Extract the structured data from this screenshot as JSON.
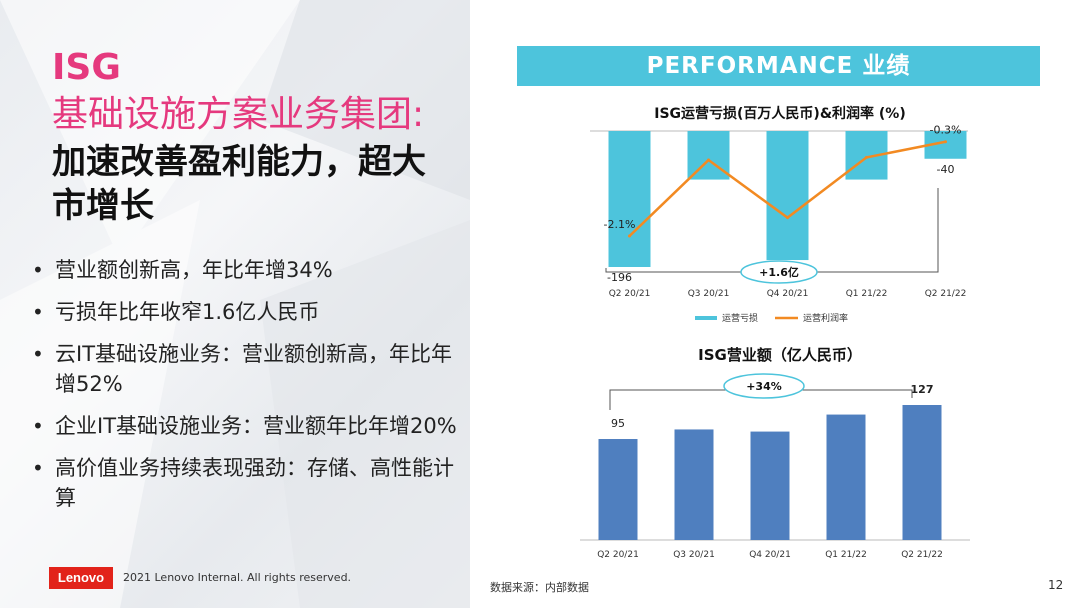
{
  "heading": {
    "line1": "ISG",
    "line2": "基础设施方案业务集团:",
    "line3": "加速改善盈利能力，超大市增长"
  },
  "bullets": [
    "营业额创新高，年比年增34%",
    "亏损年比年收窄1.6亿人民币",
    "云IT基础设施业务：营业额创新高，年比年增52%",
    "企业IT基础设施业务：营业额年比年增20%",
    "高价值业务持续表现强劲：存储、高性能计算"
  ],
  "footer": {
    "logo_text": "Lenovo",
    "copyright": "2021 Lenovo Internal. All rights reserved.",
    "source": "数据来源：内部数据",
    "page_number": "12"
  },
  "banner": {
    "text": "PERFORMANCE 业绩"
  },
  "colors": {
    "accent_pink": "#e5397e",
    "cyan": "#4dc4dc",
    "orange": "#f28a22",
    "blue": "#4f7fbf",
    "brand_red": "#e2231a"
  },
  "chart_data": [
    {
      "type": "bar",
      "title": "ISG运营亏损(百万人民币)&利润率 (%)",
      "categories": [
        "Q2 20/21",
        "Q3 20/21",
        "Q4 20/21",
        "Q1 21/22",
        "Q2 21/22"
      ],
      "series": [
        {
          "name": "运营亏损",
          "chart": "bar",
          "color": "#4dc4dc",
          "values": [
            -196,
            -70,
            -186,
            -70,
            -40
          ],
          "labels": [
            "-196",
            "",
            "",
            "",
            "-40"
          ]
        },
        {
          "name": "运营利润率",
          "chart": "line",
          "color": "#f28a22",
          "values": [
            -2.1,
            -0.65,
            -1.75,
            -0.6,
            -0.3
          ],
          "labels": [
            "-2.1%",
            "",
            "",
            "",
            "-0.3%"
          ]
        }
      ],
      "annotation": "+1.6亿",
      "ylim": [
        -210,
        0
      ]
    },
    {
      "type": "bar",
      "title": "ISG营业额（亿人民币）",
      "categories": [
        "Q2 20/21",
        "Q3 20/21",
        "Q4 20/21",
        "Q1 21/22",
        "Q2 21/22"
      ],
      "series": [
        {
          "name": "营业额",
          "color": "#4f7fbf",
          "values": [
            95,
            104,
            102,
            118,
            127
          ],
          "labels": [
            "95",
            "",
            "",
            "",
            "127"
          ]
        }
      ],
      "annotation": "+34%",
      "ylim": [
        0,
        160
      ]
    }
  ]
}
